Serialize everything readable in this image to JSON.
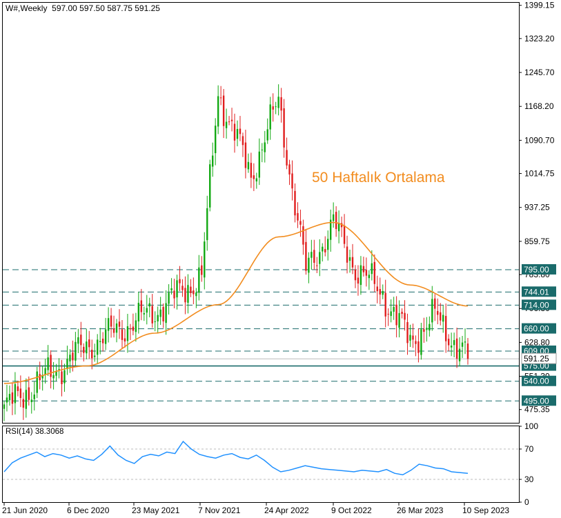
{
  "header": {
    "symbol": "W#,Weekly",
    "ohlc": "597.00 597.50 587.75 591.25"
  },
  "rsi": {
    "label": "RSI(14) 38.3068",
    "levels": [
      "100",
      "70",
      "30",
      "0"
    ],
    "color": "#1e90ff"
  },
  "annotation": {
    "text": "50 Haftalık Ortalama",
    "color": "#f28c1e"
  },
  "colors": {
    "up": "#11a811",
    "down": "#e01d1d",
    "ma": "#f28c1e",
    "level_line": "#1a6b6b",
    "label_bg": "#1a6b6b"
  },
  "chart_data": [
    {
      "type": "candlestick",
      "title": "W#,Weekly",
      "x_ticks": [
        "21 Jun 2020",
        "6 Dec 2020",
        "23 May 2021",
        "7 Nov 2021",
        "24 Apr 2022",
        "9 Oct 2022",
        "26 Mar 2023",
        "10 Sep 2023"
      ],
      "y_ticks": [
        "1399.15",
        "1323.20",
        "1245.70",
        "1168.20",
        "1090.70",
        "1014.75",
        "937.25",
        "859.75",
        "783.80",
        "706.30",
        "628.80",
        "551.30",
        "475.35"
      ],
      "ylim": [
        445,
        1405
      ],
      "horizontal_levels": [
        {
          "label": "795.00",
          "value": 795
        },
        {
          "label": "744.01",
          "value": 744.01
        },
        {
          "label": "714.00",
          "value": 714
        },
        {
          "label": "660.00",
          "value": 660
        },
        {
          "label": "609.00",
          "value": 609
        },
        {
          "label": "575.00",
          "value": 575
        },
        {
          "label": "540.00",
          "value": 540
        },
        {
          "label": "495.00",
          "value": 495
        }
      ],
      "current_price": {
        "label": "591.25",
        "value": 591.25
      },
      "close_series": [
        {
          "week": "21 Jun 2020",
          "close": 478
        },
        {
          "week": "6 Dec 2020",
          "close": 620
        },
        {
          "week": "23 May 2021",
          "close": 700
        },
        {
          "week": "Sep 2021",
          "close": 780
        },
        {
          "week": "7 Nov 2021",
          "close": 1200
        },
        {
          "week": "Feb 2022",
          "close": 1010
        },
        {
          "week": "24 Apr 2022",
          "close": 1180
        },
        {
          "week": "Jun 2022",
          "close": 790
        },
        {
          "week": "Aug 2022",
          "close": 900
        },
        {
          "week": "9 Oct 2022",
          "close": 800
        },
        {
          "week": "Dec 2022",
          "close": 740
        },
        {
          "week": "26 Mar 2023",
          "close": 630
        },
        {
          "week": "Jun 2023",
          "close": 690
        },
        {
          "week": "10 Sep 2023",
          "close": 591.25
        }
      ],
      "ma50_series": [
        {
          "week": "21 Jun 2020",
          "value": 535
        },
        {
          "week": "6 Dec 2020",
          "value": 575
        },
        {
          "week": "23 May 2021",
          "value": 650
        },
        {
          "week": "7 Nov 2021",
          "value": 715
        },
        {
          "week": "24 Apr 2022",
          "value": 870
        },
        {
          "week": "9 Oct 2022",
          "value": 903
        },
        {
          "week": "26 Mar 2023",
          "value": 760
        },
        {
          "week": "10 Sep 2023",
          "value": 712
        }
      ]
    },
    {
      "type": "line",
      "title": "RSI(14) 38.3068",
      "x_ticks": [
        "21 Jun 2020",
        "6 Dec 2020",
        "23 May 2021",
        "7 Nov 2021",
        "24 Apr 2022",
        "9 Oct 2022",
        "26 Mar 2023",
        "10 Sep 2023"
      ],
      "y_ticks": [
        "100",
        "70",
        "30",
        "0"
      ],
      "ylim": [
        0,
        100
      ],
      "guide_levels": [
        70,
        30
      ],
      "values": [
        40,
        52,
        58,
        62,
        66,
        60,
        64,
        62,
        58,
        61,
        57,
        55,
        63,
        74,
        62,
        55,
        51,
        60,
        63,
        61,
        66,
        64,
        80,
        70,
        63,
        60,
        58,
        62,
        64,
        59,
        57,
        62,
        55,
        46,
        40,
        42,
        45,
        48,
        46,
        44,
        43,
        42,
        41,
        40,
        42,
        41,
        40,
        43,
        38,
        36,
        42,
        50,
        48,
        45,
        44,
        40,
        39,
        38
      ]
    }
  ]
}
